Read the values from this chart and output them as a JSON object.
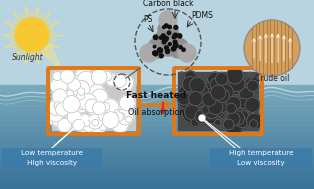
{
  "bg_sky": "#b8d4e0",
  "bg_water_light": "#7aabbc",
  "bg_water_mid": "#6090a8",
  "bg_water_dark": "#4878a0",
  "foam_border": "#e07818",
  "foam_left_bg": "#d0d0d0",
  "foam_right_bg": "#505050",
  "sun_yellow": "#f8c830",
  "sun_ray": "#f8e060",
  "beam_yellow": "#f8e88a",
  "arrow_orange": "#e07818",
  "fast_heated": "Fast heated",
  "oil_absorption": "Oil absorption",
  "sunlight": "Sunlight",
  "ps_label": "PS",
  "carbon_black_label": "Carbon black",
  "pdms_label": "PDMS",
  "crude_oil_label": "Crude oil",
  "low_temp": "Low temperature",
  "high_visc": "High viscosity",
  "high_temp": "High temperature",
  "low_visc": "Low viscosity",
  "label_box_color": "#3a7aaa",
  "water_wave_color": "#ffffff",
  "zoom_node_color": "#888888",
  "zoom_bg": "#999999",
  "carbon_dot": "#111111",
  "oil_skin_color": "#d4a060",
  "oil_dark_color": "#a06820",
  "white_line": "#ffffff"
}
